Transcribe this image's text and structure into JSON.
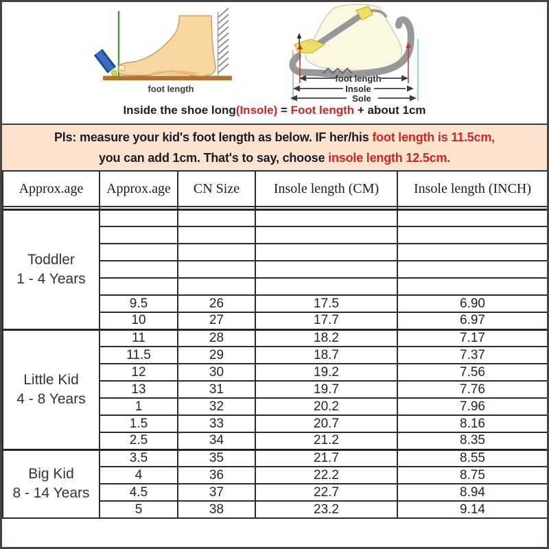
{
  "colors": {
    "accent_red": "#d42421",
    "notice_bg": "#fbe3d0",
    "notice_text": "#1b1b25",
    "border_dark": "#2d2d2d",
    "outer_border": "#4b443e",
    "text_dark": "#242424"
  },
  "diagrams": {
    "left": {
      "label": "foot length"
    },
    "right": {
      "labels": {
        "foot_length": "foot length",
        "insole": "Insole",
        "sole": "Sole"
      }
    },
    "caption": {
      "segments": [
        {
          "text": "Inside the shoe long"
        },
        {
          "text": "(Insole)"
        },
        {
          "text": " = "
        },
        {
          "text": "Foot length"
        },
        {
          "text": " + about 1cm"
        }
      ]
    }
  },
  "notice": {
    "line1_black": "Pls: measure your kid's foot length as below. IF her/his ",
    "line1_red": "foot length is 11.5cm,",
    "line2_black": "you can add 1cm. That's to say, choose ",
    "line2_red": "insole length 12.5cm."
  },
  "table": {
    "headers": [
      "Approx.age",
      "Approx.age",
      "CN Size",
      "Insole length (CM)",
      "Insole length  (INCH)"
    ],
    "sections": [
      {
        "group_label_lines": [
          "Toddler",
          "1 - 4 Years"
        ],
        "rows": [
          [
            "",
            "",
            "",
            ""
          ],
          [
            "",
            "",
            "",
            ""
          ],
          [
            "",
            "",
            "",
            ""
          ],
          [
            "",
            "",
            "",
            ""
          ],
          [
            "",
            "",
            "",
            ""
          ],
          [
            "9.5",
            "26",
            "17.5",
            "6.90"
          ],
          [
            "10",
            "27",
            "17.7",
            "6.97"
          ]
        ]
      },
      {
        "group_label_lines": [
          "Little Kid",
          "4 - 8 Years"
        ],
        "rows": [
          [
            "11",
            "28",
            "18.2",
            "7.17"
          ],
          [
            "11.5",
            "29",
            "18.7",
            "7.37"
          ],
          [
            "12",
            "30",
            "19.2",
            "7.56"
          ],
          [
            "13",
            "31",
            "19.7",
            "7.76"
          ],
          [
            "1",
            "32",
            "20.2",
            "7.96"
          ],
          [
            "1.5",
            "33",
            "20.7",
            "8.16"
          ],
          [
            "2.5",
            "34",
            "21.2",
            "8.35"
          ]
        ]
      },
      {
        "group_label_lines": [
          "Big Kid",
          "8 - 14 Years"
        ],
        "rows": [
          [
            "3.5",
            "35",
            "21.7",
            "8.55"
          ],
          [
            "4",
            "36",
            "22.2",
            "8.75"
          ],
          [
            "4.5",
            "37",
            "22.7",
            "8.94"
          ],
          [
            "5",
            "38",
            "23.2",
            "9.14"
          ]
        ]
      }
    ]
  }
}
